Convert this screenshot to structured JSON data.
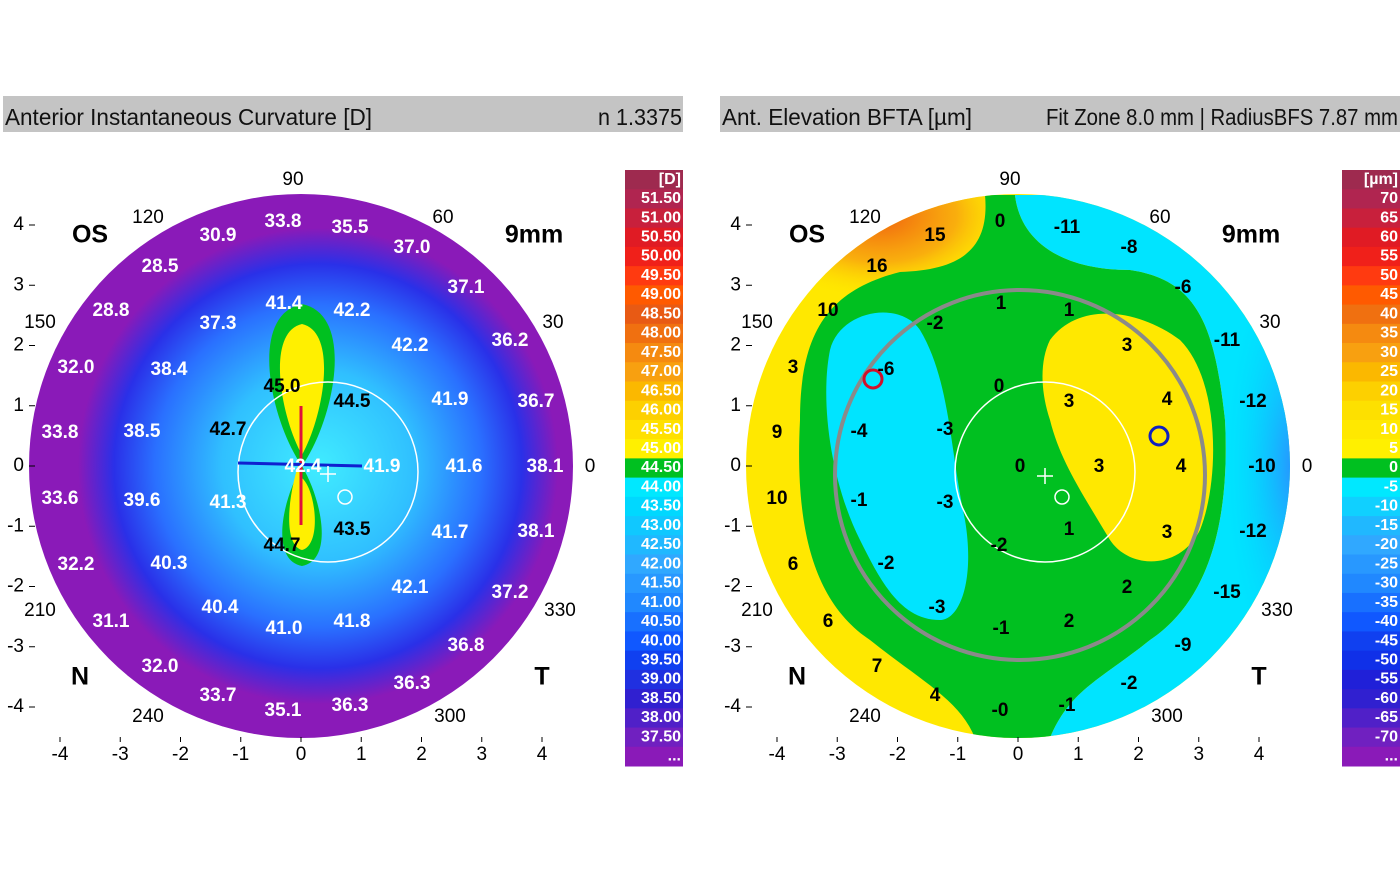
{
  "panels": [
    {
      "title": "Anterior Instantaneous Curvature  [D]",
      "info": "n 1.3375",
      "eye": "OS",
      "zone": "9mm",
      "nasal": "N",
      "temporal": "T",
      "angles": [
        "90",
        "120",
        "60",
        "150",
        "30",
        "0",
        "210",
        "330",
        "240",
        "300"
      ],
      "xticks": [
        -4,
        -3,
        -2,
        -1,
        0,
        1,
        2,
        3,
        4
      ],
      "yticks": [
        4,
        3,
        2,
        1,
        0,
        -1,
        -2,
        -3,
        -4
      ],
      "map_values": [
        "33.8",
        "35.5",
        "30.9",
        "37.0",
        "28.5",
        "37.1",
        "41.4",
        "42.2",
        "28.8",
        "37.3",
        "42.2",
        "36.2",
        "32.0",
        "38.4",
        "45.0",
        "44.5",
        "41.9",
        "36.7",
        "33.8",
        "38.5",
        "42.7",
        "42.4",
        "41.9",
        "41.6",
        "38.1",
        "33.6",
        "39.6",
        "41.3",
        "43.5",
        "41.7",
        "38.1",
        "44.7",
        "32.2",
        "40.3",
        "42.1",
        "37.2",
        "31.1",
        "40.4",
        "41.0",
        "41.8",
        "36.8",
        "32.0",
        "36.3",
        "33.7",
        "35.1",
        "36.3"
      ],
      "scale": [
        {
          "label": "[D]",
          "color": "#9e2a4f"
        },
        {
          "label": "51.50",
          "color": "#b02550"
        },
        {
          "label": "51.00",
          "color": "#c8203c"
        },
        {
          "label": "50.50",
          "color": "#e01b24"
        },
        {
          "label": "50.00",
          "color": "#f0201a"
        },
        {
          "label": "49.50",
          "color": "#ff3a10"
        },
        {
          "label": "49.00",
          "color": "#ff5a00"
        },
        {
          "label": "48.50",
          "color": "#e85a14"
        },
        {
          "label": "48.00",
          "color": "#f07010"
        },
        {
          "label": "47.50",
          "color": "#f58a10"
        },
        {
          "label": "47.00",
          "color": "#f8a010"
        },
        {
          "label": "46.50",
          "color": "#fbb800"
        },
        {
          "label": "46.00",
          "color": "#fdd000"
        },
        {
          "label": "45.50",
          "color": "#ffe000"
        },
        {
          "label": "45.00",
          "color": "#fff000"
        },
        {
          "label": "44.50",
          "color": "#00c020"
        },
        {
          "label": "44.00",
          "color": "#00e8ff"
        },
        {
          "label": "43.50",
          "color": "#00d8ff"
        },
        {
          "label": "43.00",
          "color": "#10c8ff"
        },
        {
          "label": "42.50",
          "color": "#20b8ff"
        },
        {
          "label": "42.00",
          "color": "#30a8ff"
        },
        {
          "label": "41.50",
          "color": "#2898ff"
        },
        {
          "label": "41.00",
          "color": "#2088ff"
        },
        {
          "label": "40.50",
          "color": "#1870ff"
        },
        {
          "label": "40.00",
          "color": "#1058ff"
        },
        {
          "label": "39.50",
          "color": "#1040f0"
        },
        {
          "label": "39.00",
          "color": "#2030e0"
        },
        {
          "label": "38.50",
          "color": "#3020d0"
        },
        {
          "label": "38.00",
          "color": "#5020c8"
        },
        {
          "label": "37.50",
          "color": "#7020c0"
        },
        {
          "label": "...",
          "color": "#8a1ab8"
        }
      ]
    },
    {
      "title": "Ant. Elevation BFTA  [µm]",
      "info": "Fit Zone 8.0 mm | RadiusBFS 7.87 mm",
      "eye": "OS",
      "zone": "9mm",
      "nasal": "N",
      "temporal": "T",
      "angles": [
        "90",
        "120",
        "60",
        "150",
        "30",
        "0",
        "210",
        "330",
        "240",
        "300"
      ],
      "xticks": [
        -4,
        -3,
        -2,
        -1,
        0,
        1,
        2,
        3,
        4
      ],
      "yticks": [
        4,
        3,
        2,
        1,
        0,
        -1,
        -2,
        -3,
        -4
      ],
      "map_values": [
        "0",
        "-11",
        "15",
        "-8",
        "16",
        "-6",
        "1",
        "1",
        "10",
        "-2",
        "3",
        "-11",
        "3",
        "-6",
        "0",
        "3",
        "4",
        "-12",
        "9",
        "-4",
        "-3",
        "0",
        "3",
        "4",
        "-10",
        "10",
        "-1",
        "-3",
        "1",
        "3",
        "-12",
        "-2",
        "6",
        "-2",
        "2",
        "-15",
        "6",
        "-3",
        "-1",
        "2",
        "-9",
        "7",
        "-2",
        "4",
        "-0",
        "-1"
      ],
      "scale": [
        {
          "label": "[µm]",
          "color": "#9e2a4f"
        },
        {
          "label": "70",
          "color": "#b02550"
        },
        {
          "label": "65",
          "color": "#c8203c"
        },
        {
          "label": "60",
          "color": "#e01b24"
        },
        {
          "label": "55",
          "color": "#f0201a"
        },
        {
          "label": "50",
          "color": "#ff3a10"
        },
        {
          "label": "45",
          "color": "#ff5a00"
        },
        {
          "label": "40",
          "color": "#f07010"
        },
        {
          "label": "35",
          "color": "#f58a10"
        },
        {
          "label": "30",
          "color": "#f8a010"
        },
        {
          "label": "25",
          "color": "#fbb800"
        },
        {
          "label": "20",
          "color": "#fdd000"
        },
        {
          "label": "15",
          "color": "#fde000"
        },
        {
          "label": "10",
          "color": "#ffe800"
        },
        {
          "label": "5",
          "color": "#fff000"
        },
        {
          "label": "0",
          "color": "#00c020"
        },
        {
          "label": "-5",
          "color": "#00e8ff"
        },
        {
          "label": "-10",
          "color": "#10d0ff"
        },
        {
          "label": "-15",
          "color": "#20b8ff"
        },
        {
          "label": "-20",
          "color": "#30a8ff"
        },
        {
          "label": "-25",
          "color": "#2898ff"
        },
        {
          "label": "-30",
          "color": "#2088ff"
        },
        {
          "label": "-35",
          "color": "#1870ff"
        },
        {
          "label": "-40",
          "color": "#1058ff"
        },
        {
          "label": "-45",
          "color": "#1040f0"
        },
        {
          "label": "-50",
          "color": "#1030e8"
        },
        {
          "label": "-55",
          "color": "#2020d8"
        },
        {
          "label": "-60",
          "color": "#3020d0"
        },
        {
          "label": "-65",
          "color": "#5020c8"
        },
        {
          "label": "-70",
          "color": "#7020c0"
        },
        {
          "label": "...",
          "color": "#8a1ab8"
        }
      ]
    }
  ]
}
